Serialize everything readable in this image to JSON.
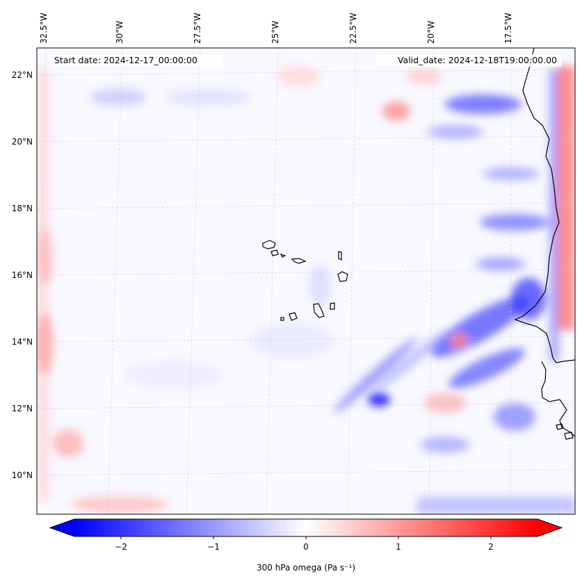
{
  "map": {
    "title_left": "Start date: 2024-12-17_00:00:00",
    "title_right": "Valid_date: 2024-12-18T19:00:00.00",
    "lon_ticks": [
      "32.5°W",
      "30°W",
      "27.5°W",
      "25°W",
      "22.5°W",
      "20°W",
      "17.5°W"
    ],
    "lat_ticks": [
      "22°N",
      "20°N",
      "18°N",
      "16°N",
      "14°N",
      "12°N",
      "10°N"
    ],
    "lon_range": [
      -33.0,
      -15.4
    ],
    "lat_range": [
      8.9,
      22.8
    ],
    "gridlines": true,
    "coastline_color": "#000000"
  },
  "colorbar": {
    "label": "300 hPa omega (Pa s⁻¹)",
    "ticks": [
      "−2",
      "−1",
      "0",
      "1",
      "2"
    ],
    "tick_values": [
      -2,
      -1,
      0,
      1,
      2
    ],
    "range": [
      -2.5,
      2.5
    ],
    "extend": "both",
    "colormap": "bwr",
    "low_color": "#0000ff",
    "mid_color": "#ffffff",
    "high_color": "#ff0000"
  }
}
